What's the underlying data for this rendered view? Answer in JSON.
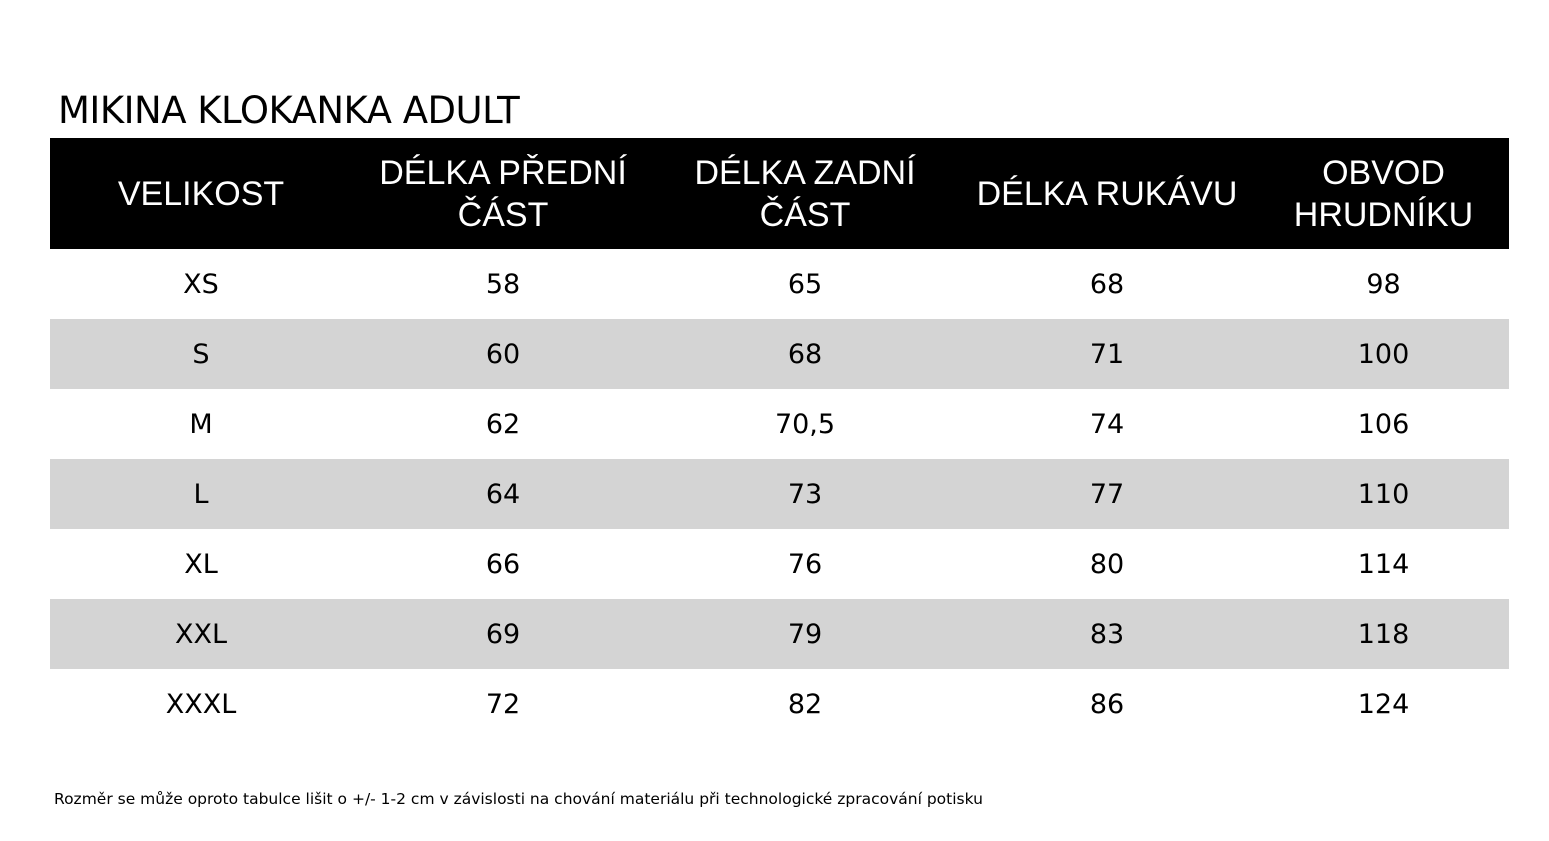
{
  "title": "MIKINA KLOKANKA ADULT",
  "table": {
    "headers": [
      [
        "VELIKOST"
      ],
      [
        "DÉLKA PŘEDNÍ",
        "ČÁST"
      ],
      [
        "DÉLKA ZADNÍ",
        "ČÁST"
      ],
      [
        "DÉLKA RUKÁVU"
      ],
      [
        "OBVOD",
        "HRUDNÍKU"
      ]
    ],
    "rows": [
      [
        "XS",
        "58",
        "65",
        "68",
        "98"
      ],
      [
        "S",
        "60",
        "68",
        "71",
        "100"
      ],
      [
        "M",
        "62",
        "70,5",
        "74",
        "106"
      ],
      [
        "L",
        "64",
        "73",
        "77",
        "110"
      ],
      [
        "XL",
        "66",
        "76",
        "80",
        "114"
      ],
      [
        "XXL",
        "69",
        "79",
        "83",
        "118"
      ],
      [
        "XXXL",
        "72",
        "82",
        "86",
        "124"
      ]
    ]
  },
  "note": "Rozměr se může oproto tabulce lišit o +/- 1-2 cm v závislosti na chování materiálu při technologické zpracování potisku",
  "colors": {
    "header_background": "#000000",
    "header_text": "#ffffff",
    "stripe_row": "#d4d4d4",
    "plain_row": "#ffffff"
  }
}
